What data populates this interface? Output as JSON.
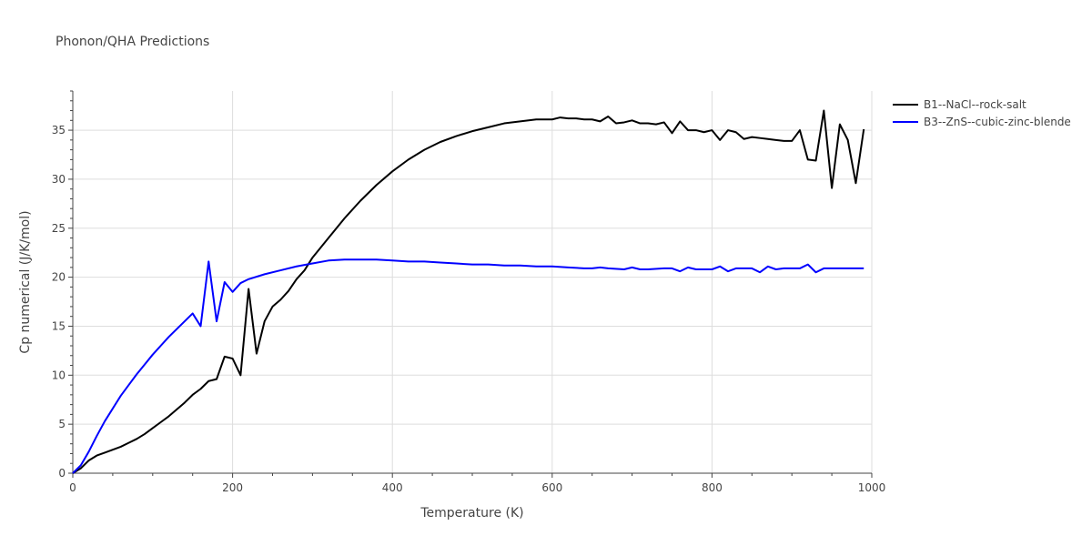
{
  "chart_data": {
    "type": "line",
    "title": "Phonon/QHA Predictions",
    "xlabel": "Temperature (K)",
    "ylabel": "Cp numerical (J/K/mol)",
    "xlim": [
      0,
      1000
    ],
    "ylim": [
      0,
      39
    ],
    "xticks": [
      0,
      200,
      400,
      600,
      800,
      1000
    ],
    "yticks": [
      0,
      5,
      10,
      15,
      20,
      25,
      30,
      35
    ],
    "grid": true,
    "legend_position": "top-right",
    "series": [
      {
        "name": "B1--NaCl--rock-salt",
        "color": "#000000",
        "x": [
          0,
          10,
          20,
          30,
          40,
          50,
          60,
          70,
          80,
          90,
          100,
          110,
          120,
          130,
          140,
          150,
          160,
          170,
          180,
          190,
          200,
          210,
          220,
          230,
          240,
          250,
          260,
          270,
          280,
          290,
          300,
          320,
          340,
          360,
          380,
          400,
          420,
          440,
          460,
          480,
          500,
          520,
          540,
          560,
          580,
          600,
          610,
          620,
          630,
          640,
          650,
          660,
          670,
          680,
          690,
          700,
          710,
          720,
          730,
          740,
          750,
          760,
          770,
          780,
          790,
          800,
          810,
          820,
          830,
          840,
          850,
          860,
          870,
          880,
          890,
          900,
          910,
          920,
          930,
          940,
          950,
          960,
          970,
          980,
          990
        ],
        "y": [
          0,
          0.5,
          1.3,
          1.8,
          2.1,
          2.4,
          2.7,
          3.1,
          3.5,
          4.0,
          4.6,
          5.2,
          5.8,
          6.5,
          7.2,
          8.0,
          8.6,
          9.4,
          9.6,
          11.9,
          11.7,
          10.0,
          18.8,
          12.2,
          15.5,
          17.0,
          17.7,
          18.6,
          19.8,
          20.7,
          22.0,
          24.0,
          26.0,
          27.8,
          29.4,
          30.8,
          32.0,
          33.0,
          33.8,
          34.4,
          34.9,
          35.3,
          35.7,
          35.9,
          36.1,
          36.1,
          36.3,
          36.2,
          36.2,
          36.1,
          36.1,
          35.9,
          36.4,
          35.7,
          35.8,
          36.0,
          35.7,
          35.7,
          35.6,
          35.8,
          34.7,
          35.9,
          35.0,
          35.0,
          34.8,
          35.0,
          34.0,
          35.0,
          34.8,
          34.1,
          34.3,
          34.2,
          34.1,
          34.0,
          33.9,
          33.9,
          35.0,
          32.0,
          31.9,
          37.0,
          29.1,
          35.6,
          34.0,
          29.6,
          35.1
        ]
      },
      {
        "name": "B3--ZnS--cubic-zinc-blende",
        "color": "#0000ff",
        "x": [
          0,
          10,
          20,
          30,
          40,
          50,
          60,
          70,
          80,
          90,
          100,
          110,
          120,
          130,
          140,
          150,
          160,
          170,
          180,
          190,
          200,
          210,
          220,
          240,
          260,
          280,
          300,
          320,
          340,
          360,
          380,
          400,
          420,
          440,
          460,
          480,
          500,
          520,
          540,
          560,
          580,
          600,
          620,
          640,
          650,
          660,
          670,
          690,
          700,
          710,
          720,
          740,
          750,
          760,
          770,
          780,
          790,
          800,
          810,
          820,
          830,
          840,
          850,
          860,
          870,
          880,
          890,
          900,
          910,
          920,
          930,
          940,
          950,
          960,
          970,
          980,
          990
        ],
        "y": [
          0,
          0.8,
          2.2,
          3.8,
          5.3,
          6.6,
          7.9,
          9.0,
          10.1,
          11.1,
          12.1,
          13.0,
          13.9,
          14.7,
          15.5,
          16.3,
          15.0,
          21.6,
          15.5,
          19.5,
          18.5,
          19.4,
          19.8,
          20.3,
          20.7,
          21.1,
          21.4,
          21.7,
          21.8,
          21.8,
          21.8,
          21.7,
          21.6,
          21.6,
          21.5,
          21.4,
          21.3,
          21.3,
          21.2,
          21.2,
          21.1,
          21.1,
          21.0,
          20.9,
          20.9,
          21.0,
          20.9,
          20.8,
          21.0,
          20.8,
          20.8,
          20.9,
          20.9,
          20.6,
          21.0,
          20.8,
          20.8,
          20.8,
          21.1,
          20.6,
          20.9,
          20.9,
          20.9,
          20.5,
          21.1,
          20.8,
          20.9,
          20.9,
          20.9,
          21.3,
          20.5,
          20.9,
          20.9,
          20.9,
          20.9,
          20.9,
          20.9
        ]
      }
    ]
  }
}
